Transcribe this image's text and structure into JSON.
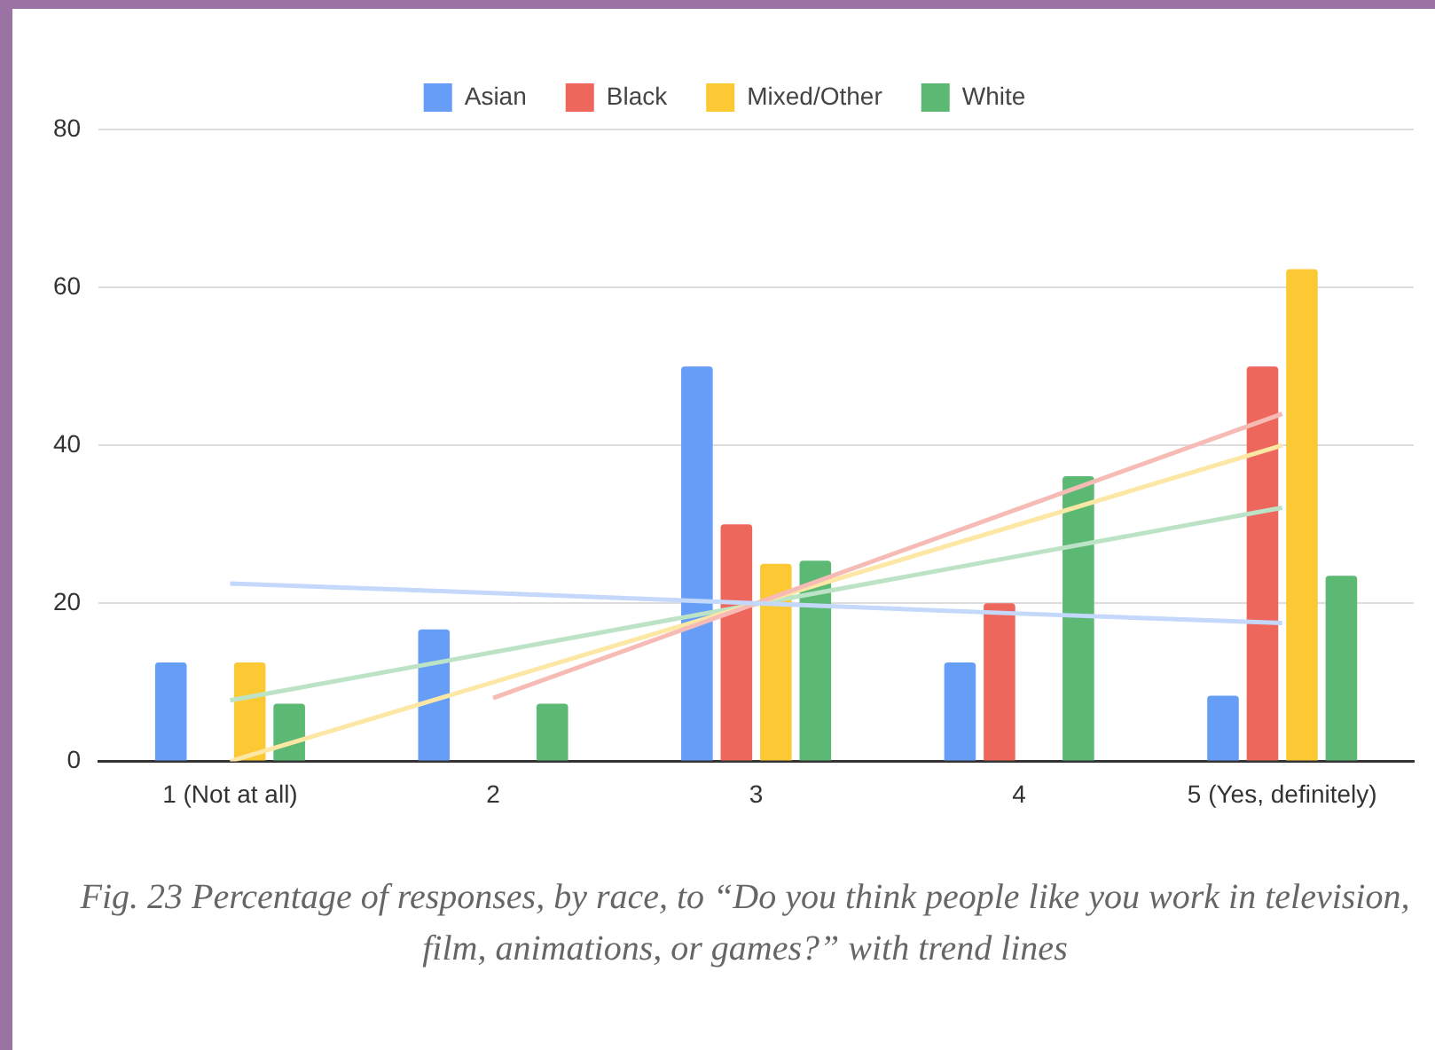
{
  "chart_data": {
    "type": "bar",
    "categories": [
      "1 (Not at all)",
      "2",
      "3",
      "4",
      "5 (Yes, definitely)"
    ],
    "series": [
      {
        "name": "Asian",
        "color": "#669df6",
        "values": [
          12.5,
          16.7,
          50,
          12.5,
          8.3
        ]
      },
      {
        "name": "Black",
        "color": "#ee675c",
        "values": [
          0,
          0,
          30,
          20,
          50
        ]
      },
      {
        "name": "Mixed/Other",
        "color": "#fcc934",
        "values": [
          12.5,
          0,
          25,
          0,
          62.3
        ]
      },
      {
        "name": "White",
        "color": "#5bb974",
        "values": [
          7.3,
          7.3,
          25.4,
          36.1,
          23.5
        ]
      },
      {
        "type": "line",
        "color": "#c3d8fb",
        "values": [
          22.5,
          21.3,
          20,
          18.7,
          17.5
        ]
      },
      {
        "type": "line",
        "color": "#f7bbb6",
        "values": [
          null,
          8,
          20,
          32,
          44
        ]
      },
      {
        "type": "line",
        "color": "#fde7a4",
        "values": [
          0,
          10,
          20,
          30,
          40
        ]
      },
      {
        "type": "line",
        "color": "#bde3c6",
        "values": [
          7.7,
          13.8,
          19.9,
          26,
          32.1
        ]
      }
    ],
    "ylim": [
      0,
      80
    ],
    "yticks": [
      0,
      20,
      40,
      60,
      80
    ],
    "grid": "y",
    "legend": "top",
    "annotations": [
      "Fig. 23 Percentage of responses, by race, to “Do you think people like you work in television, film, animations, or games?” with trend lines"
    ]
  }
}
